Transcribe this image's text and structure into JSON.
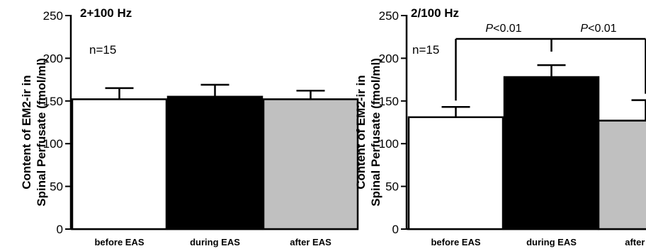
{
  "chart_data": [
    {
      "type": "bar",
      "title": "2+100 Hz",
      "annotation": "n=15",
      "ylabel_line1": "Content of EM2-ir in",
      "ylabel_line2": "Spinal Perfusate (fmol/ml)",
      "ylim": [
        0,
        250
      ],
      "yticks": [
        0,
        50,
        100,
        150,
        200,
        250
      ],
      "categories": [
        "before EAS",
        "during EAS",
        "after EAS"
      ],
      "values": [
        152,
        155,
        152
      ],
      "errors": [
        13,
        14,
        10
      ],
      "bar_colors": [
        "#ffffff",
        "#000000",
        "#c0c0c0"
      ],
      "significance": []
    },
    {
      "type": "bar",
      "title": "2/100 Hz",
      "annotation": "n=15",
      "ylabel_line1": "Content of EM2-ir in",
      "ylabel_line2": "Spinal Perfusate (fmol/ml)",
      "ylim": [
        0,
        250
      ],
      "yticks": [
        0,
        50,
        100,
        150,
        200,
        250
      ],
      "categories": [
        "before EAS",
        "during EAS",
        "after EAS"
      ],
      "values": [
        131,
        178,
        127
      ],
      "errors": [
        12,
        14,
        24
      ],
      "bar_colors": [
        "#ffffff",
        "#000000",
        "#c0c0c0"
      ],
      "significance": [
        {
          "from": 0,
          "to": 1,
          "p_prefix": "P",
          "p_suffix": "<0.01"
        },
        {
          "from": 1,
          "to": 2,
          "p_prefix": "P",
          "p_suffix": "<0.01"
        }
      ]
    }
  ]
}
